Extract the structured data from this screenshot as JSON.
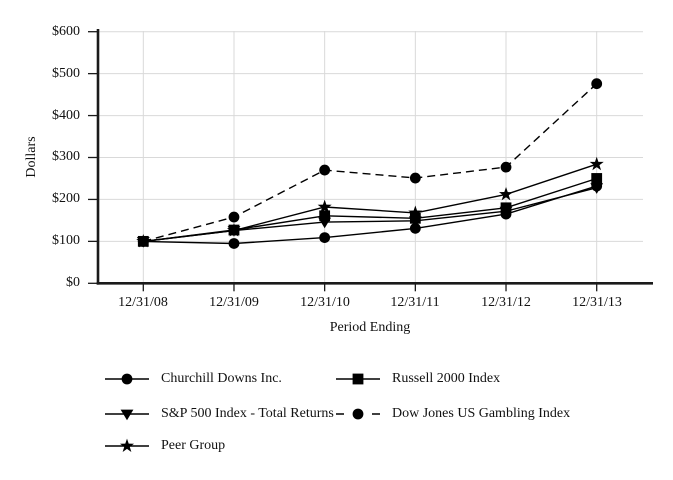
{
  "chart_data": {
    "type": "line",
    "title": "",
    "xlabel": "Period Ending",
    "ylabel": "Dollars",
    "grid": true,
    "legend_position": "bottom",
    "colors": {
      "series": "#000000",
      "grid": "#d9d9d9",
      "axis": "#1a1a1a"
    },
    "x_axis": {
      "label": "Period Ending",
      "tick_labels": [
        "12/31/08",
        "12/31/09",
        "12/31/10",
        "12/31/11",
        "12/31/12",
        "12/31/13"
      ]
    },
    "y_axis": {
      "label": "Dollars",
      "tick_labels": [
        "$600",
        "$500",
        "$400",
        "$300",
        "$200",
        "$100",
        "$0"
      ],
      "min": 0,
      "max": 600,
      "step": 100
    },
    "categories": [
      "12/31/08",
      "12/31/09",
      "12/31/10",
      "12/31/11",
      "12/31/12",
      "12/31/13"
    ],
    "series": [
      {
        "name": "Churchill Downs Inc.",
        "marker": "circle",
        "line": "solid",
        "values": [
          100,
          95,
          109,
          131,
          165,
          232
        ]
      },
      {
        "name": "Russell 2000 Index",
        "marker": "square",
        "line": "solid",
        "values": [
          100,
          127,
          161,
          155,
          180,
          250
        ]
      },
      {
        "name": "S&P 500 Index - Total Returns",
        "marker": "triangle-down",
        "line": "solid",
        "values": [
          100,
          126,
          146,
          149,
          172,
          228
        ]
      },
      {
        "name": "Dow Jones US Gambling Index",
        "marker": "circle",
        "line": "dashed",
        "values": [
          100,
          158,
          270,
          251,
          277,
          476
        ]
      },
      {
        "name": "Peer Group",
        "marker": "star",
        "line": "solid",
        "values": [
          100,
          126,
          182,
          168,
          212,
          284
        ]
      }
    ]
  }
}
